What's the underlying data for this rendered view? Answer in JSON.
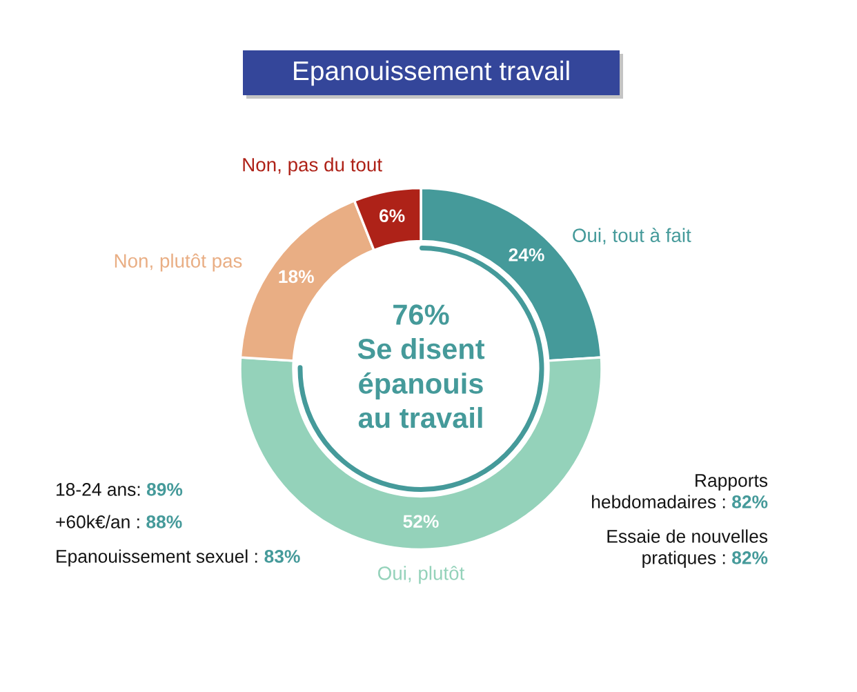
{
  "chart_data": {
    "type": "donut",
    "title": "Epanouissement travail",
    "categories": [
      "Oui, tout à fait",
      "Oui, plutôt",
      "Non, plutôt pas",
      "Non, pas du tout"
    ],
    "values": [
      24,
      52,
      18,
      6
    ],
    "colors": [
      "#459a9a",
      "#94d2ba",
      "#e9ae84",
      "#ae2218"
    ],
    "value_labels": [
      "24%",
      "52%",
      "18%",
      "6%"
    ],
    "annotations": [
      "76%\nSe disent\népanouis\nau travail",
      "18-24 ans: 89%",
      "+60k€/an : 88%",
      "Epanouissement sexuel : 83%",
      "Rapports\nhebdomadaires : 82%",
      "Essaie de nouvelles\npratiques : 82%"
    ]
  }
}
